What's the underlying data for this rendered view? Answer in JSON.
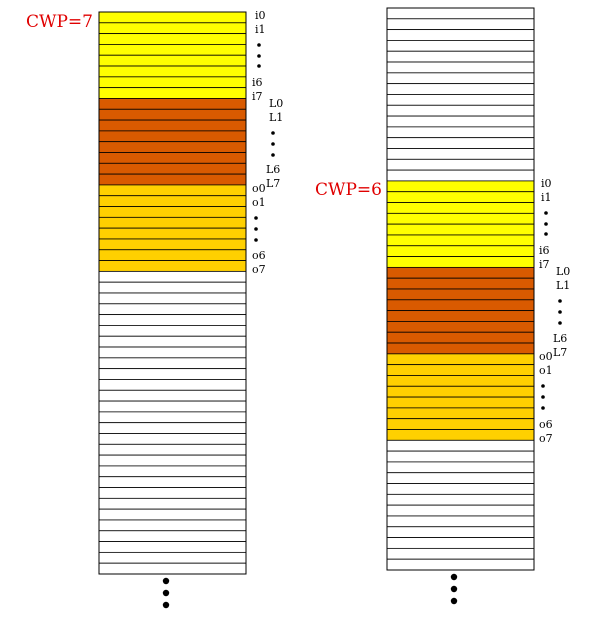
{
  "colors": {
    "in_regs": "#ffff00",
    "local_regs": "#d95a00",
    "out_regs": "#ffd000",
    "empty": "#ffffff",
    "cwp_label": "#e00000"
  },
  "stacks": [
    {
      "cwp_label": "CWP=7",
      "slots": 52,
      "in_start": 0,
      "group_size": 8,
      "in_labels": {
        "first": "i0",
        "second": "i1",
        "second_last": "i6",
        "last": "i7"
      },
      "local_labels": {
        "first": "L0",
        "second": "L1",
        "second_last": "L6",
        "last": "L7"
      },
      "out_labels": {
        "first": "o0",
        "second": "o1",
        "second_last": "o6",
        "last": "o7"
      }
    },
    {
      "cwp_label": "CWP=6",
      "slots": 52,
      "in_start": 16,
      "group_size": 8,
      "in_labels": {
        "first": "i0",
        "second": "i1",
        "second_last": "i6",
        "last": "i7"
      },
      "local_labels": {
        "first": "L0",
        "second": "L1",
        "second_last": "L6",
        "last": "L7"
      },
      "out_labels": {
        "first": "o0",
        "second": "o1",
        "second_last": "o6",
        "last": "o7"
      }
    }
  ]
}
